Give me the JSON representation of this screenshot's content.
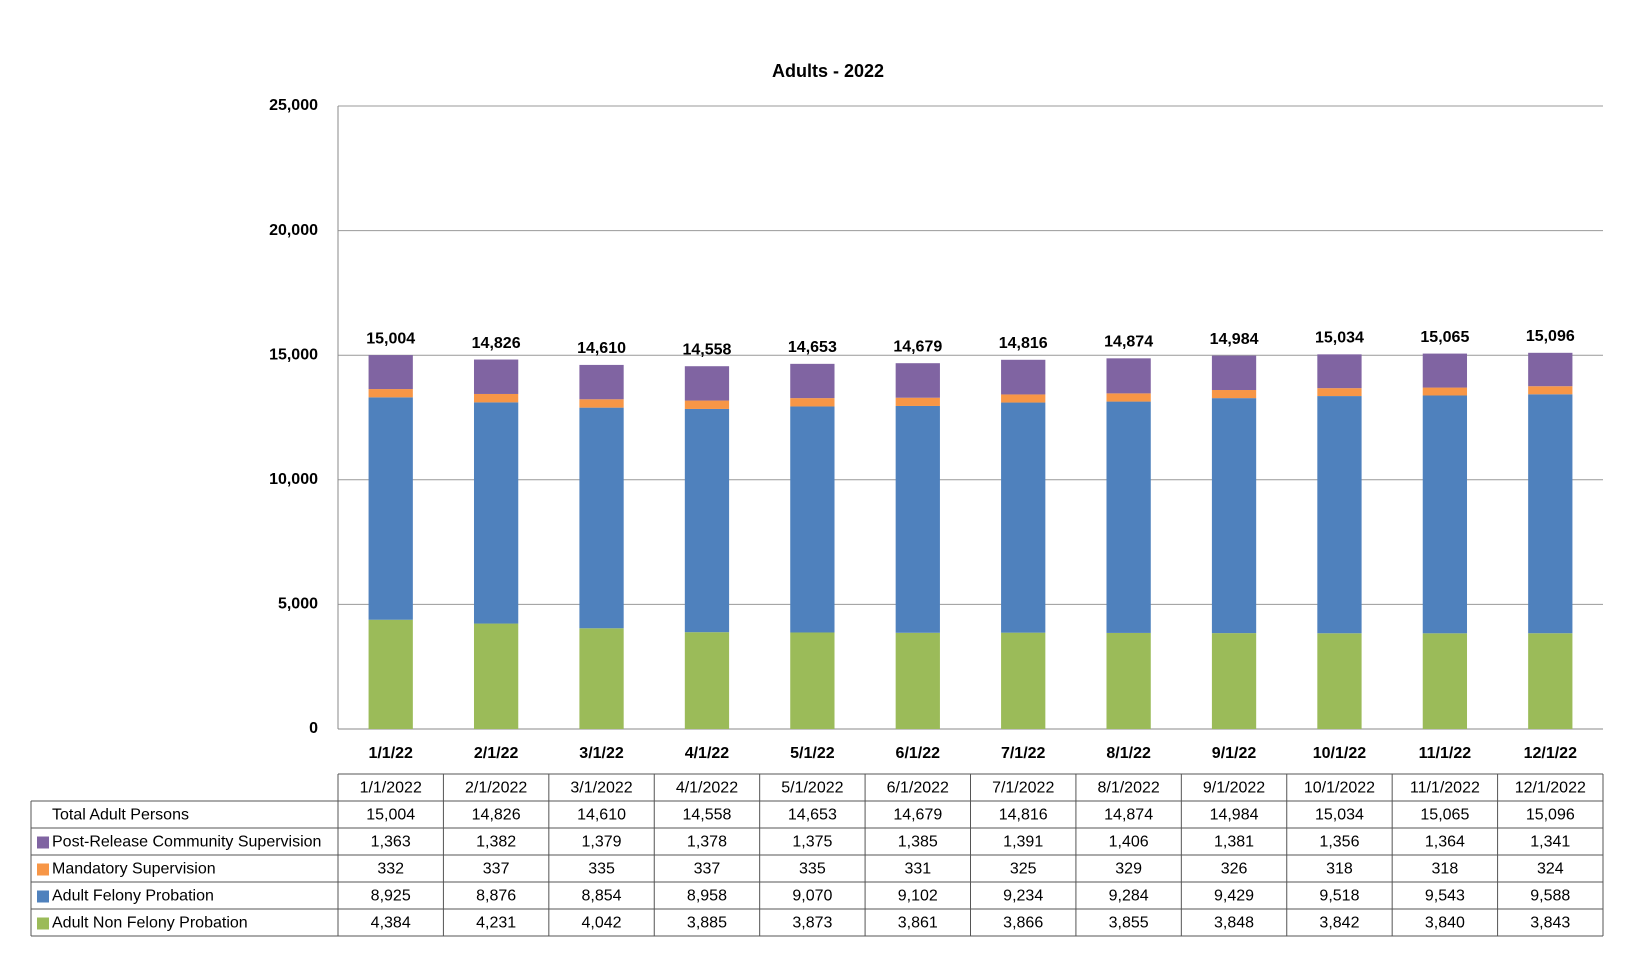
{
  "chart_data": {
    "type": "bar",
    "stacked": true,
    "title": "Adults - 2022",
    "categories": [
      "1/1/22",
      "2/1/22",
      "3/1/22",
      "4/1/22",
      "5/1/22",
      "6/1/22",
      "7/1/22",
      "8/1/22",
      "9/1/22",
      "10/1/22",
      "11/1/22",
      "12/1/22"
    ],
    "table_columns": [
      "1/1/2022",
      "2/1/2022",
      "3/1/2022",
      "4/1/2022",
      "5/1/2022",
      "6/1/2022",
      "7/1/2022",
      "8/1/2022",
      "9/1/2022",
      "10/1/2022",
      "11/1/2022",
      "12/1/2022"
    ],
    "totals": {
      "name": "Total Adult Persons",
      "values": [
        15004,
        14826,
        14610,
        14558,
        14653,
        14679,
        14816,
        14874,
        14984,
        15034,
        15065,
        15096
      ],
      "value_labels": [
        "15,004",
        "14,826",
        "14,610",
        "14,558",
        "14,653",
        "14,679",
        "14,816",
        "14,874",
        "14,984",
        "15,034",
        "15,065",
        "15,096"
      ]
    },
    "series": [
      {
        "name": "Post-Release Community Supervision",
        "color": "#8064a2",
        "values": [
          1363,
          1382,
          1379,
          1378,
          1375,
          1385,
          1391,
          1406,
          1381,
          1356,
          1364,
          1341
        ],
        "value_labels": [
          "1,363",
          "1,382",
          "1,379",
          "1,378",
          "1,375",
          "1,385",
          "1,391",
          "1,406",
          "1,381",
          "1,356",
          "1,364",
          "1,341"
        ]
      },
      {
        "name": "Mandatory Supervision",
        "color": "#f79646",
        "values": [
          332,
          337,
          335,
          337,
          335,
          331,
          325,
          329,
          326,
          318,
          318,
          324
        ]
      },
      {
        "name": "Adult Felony Probation",
        "color": "#4f81bd",
        "values": [
          8925,
          8876,
          8854,
          8958,
          9070,
          9102,
          9234,
          9284,
          9429,
          9518,
          9543,
          9588
        ],
        "value_labels": [
          "8,925",
          "8,876",
          "8,854",
          "8,958",
          "9,070",
          "9,102",
          "9,234",
          "9,284",
          "9,429",
          "9,518",
          "9,543",
          "9,588"
        ]
      },
      {
        "name": "Adult Non Felony Probation",
        "color": "#9bbb59",
        "values": [
          4384,
          4231,
          4042,
          3885,
          3873,
          3861,
          3866,
          3855,
          3848,
          3842,
          3840,
          3843
        ],
        "value_labels": [
          "4,384",
          "4,231",
          "4,042",
          "3,885",
          "3,873",
          "3,861",
          "3,866",
          "3,855",
          "3,848",
          "3,842",
          "3,840",
          "3,843"
        ]
      }
    ],
    "ylim": [
      0,
      25000
    ],
    "yticks": [
      0,
      {
        "value": 5000,
        "label": "5,000"
      },
      {
        "value": 10000,
        "label": "10,000"
      },
      {
        "value": 15000,
        "label": "15,000"
      },
      {
        "value": 20000,
        "label": "20,000"
      },
      {
        "value": 25000,
        "label": "25,000"
      }
    ],
    "grid": true
  }
}
